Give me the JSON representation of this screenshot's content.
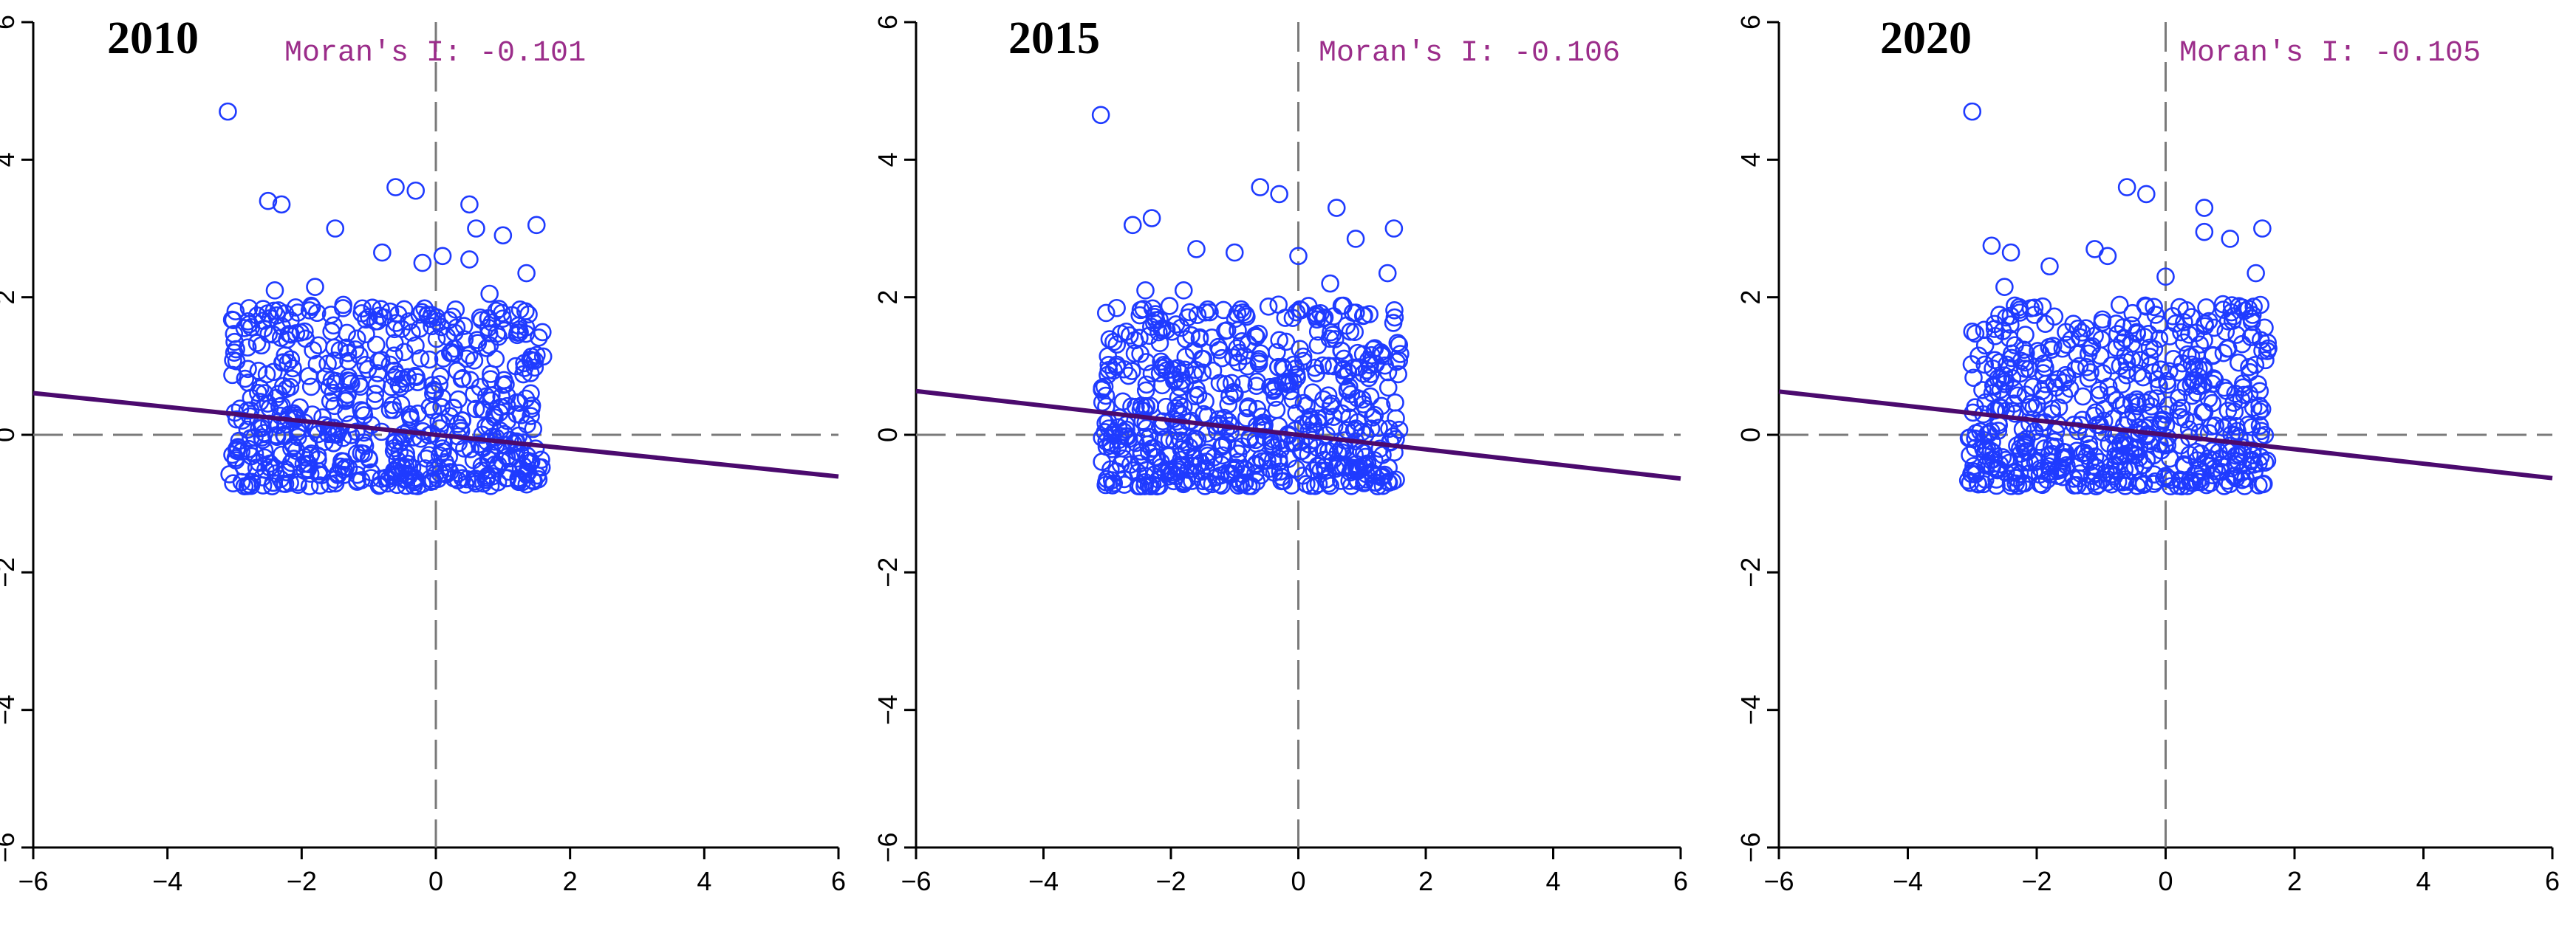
{
  "figure": {
    "panels": [
      {
        "year": "2010",
        "moran": "Moran's I: -0.101"
      },
      {
        "year": "2015",
        "moran": "Moran's I: -0.106"
      },
      {
        "year": "2020",
        "moran": "Moran's I: -0.105"
      }
    ]
  },
  "colors": {
    "points": "#1f3bff",
    "regression": "#4b0a6e",
    "moran_text": "#9b2d8a",
    "axes": "#000000",
    "reference_lines": "#7a7a7a"
  },
  "chart_data": [
    {
      "type": "scatter",
      "title": "2010",
      "annotation": "Moran's I: -0.101",
      "xlim": [
        -6,
        6
      ],
      "ylim": [
        -6,
        6
      ],
      "xticks": [
        -6,
        -4,
        -2,
        0,
        2,
        4,
        6
      ],
      "yticks": [
        -6,
        -4,
        -2,
        0,
        2,
        4,
        6
      ],
      "regression": {
        "slope": -0.101,
        "intercept": 0.0
      },
      "reference_lines": {
        "x": 0,
        "y": 0
      },
      "cluster": {
        "x_range": [
          -3.1,
          1.6
        ],
        "y_range": [
          -0.75,
          1.9
        ],
        "count": 600
      },
      "points": [
        [
          -3.1,
          4.7
        ],
        [
          -2.5,
          3.4
        ],
        [
          -2.3,
          3.35
        ],
        [
          -1.5,
          3.0
        ],
        [
          -0.6,
          3.6
        ],
        [
          -0.3,
          3.55
        ],
        [
          0.5,
          3.35
        ],
        [
          0.6,
          3.0
        ],
        [
          1.5,
          3.05
        ],
        [
          1.0,
          2.9
        ],
        [
          0.1,
          2.6
        ],
        [
          -0.2,
          2.5
        ],
        [
          0.5,
          2.55
        ],
        [
          1.35,
          2.35
        ],
        [
          -0.8,
          2.65
        ],
        [
          -1.8,
          2.15
        ],
        [
          -2.4,
          2.1
        ],
        [
          0.8,
          2.05
        ],
        [
          -2.8,
          1.65
        ],
        [
          -2.6,
          1.3
        ],
        [
          -3.0,
          1.35
        ]
      ]
    },
    {
      "type": "scatter",
      "title": "2015",
      "annotation": "Moran's I: -0.106",
      "xlim": [
        -6,
        6
      ],
      "ylim": [
        -6,
        6
      ],
      "xticks": [
        -6,
        -4,
        -2,
        0,
        2,
        4,
        6
      ],
      "yticks": [
        -6,
        -4,
        -2,
        0,
        2,
        4,
        6
      ],
      "regression": {
        "slope": -0.106,
        "intercept": 0.0
      },
      "reference_lines": {
        "x": 0,
        "y": 0
      },
      "cluster": {
        "x_range": [
          -3.1,
          1.6
        ],
        "y_range": [
          -0.75,
          1.9
        ],
        "count": 600
      },
      "points": [
        [
          -3.1,
          4.65
        ],
        [
          -2.6,
          3.05
        ],
        [
          -2.3,
          3.15
        ],
        [
          -1.6,
          2.7
        ],
        [
          -0.6,
          3.6
        ],
        [
          -0.3,
          3.5
        ],
        [
          0.6,
          3.3
        ],
        [
          1.5,
          3.0
        ],
        [
          0.9,
          2.85
        ],
        [
          0.0,
          2.6
        ],
        [
          -1.0,
          2.65
        ],
        [
          -2.4,
          2.1
        ],
        [
          -1.8,
          2.1
        ],
        [
          0.5,
          2.2
        ],
        [
          1.4,
          2.35
        ],
        [
          -2.9,
          1.35
        ],
        [
          -2.7,
          1.5
        ]
      ]
    },
    {
      "type": "scatter",
      "title": "2020",
      "annotation": "Moran's I: -0.105",
      "xlim": [
        -6,
        6
      ],
      "ylim": [
        -6,
        6
      ],
      "xticks": [
        -6,
        -4,
        -2,
        0,
        2,
        4,
        6
      ],
      "yticks": [
        -6,
        -4,
        -2,
        0,
        2,
        4,
        6
      ],
      "regression": {
        "slope": -0.105,
        "intercept": 0.0
      },
      "reference_lines": {
        "x": 0,
        "y": 0
      },
      "cluster": {
        "x_range": [
          -3.1,
          1.6
        ],
        "y_range": [
          -0.75,
          1.9
        ],
        "count": 600
      },
      "points": [
        [
          -3.0,
          4.7
        ],
        [
          -2.7,
          2.75
        ],
        [
          -2.4,
          2.65
        ],
        [
          -1.8,
          2.45
        ],
        [
          -1.1,
          2.7
        ],
        [
          -0.9,
          2.6
        ],
        [
          -0.6,
          3.6
        ],
        [
          -0.3,
          3.5
        ],
        [
          0.6,
          3.3
        ],
        [
          0.6,
          2.95
        ],
        [
          1.0,
          2.85
        ],
        [
          1.5,
          3.0
        ],
        [
          0.0,
          2.3
        ],
        [
          1.4,
          2.35
        ],
        [
          -2.5,
          2.15
        ],
        [
          -3.0,
          1.5
        ],
        [
          -2.8,
          1.3
        ],
        [
          -2.9,
          1.15
        ]
      ]
    }
  ]
}
